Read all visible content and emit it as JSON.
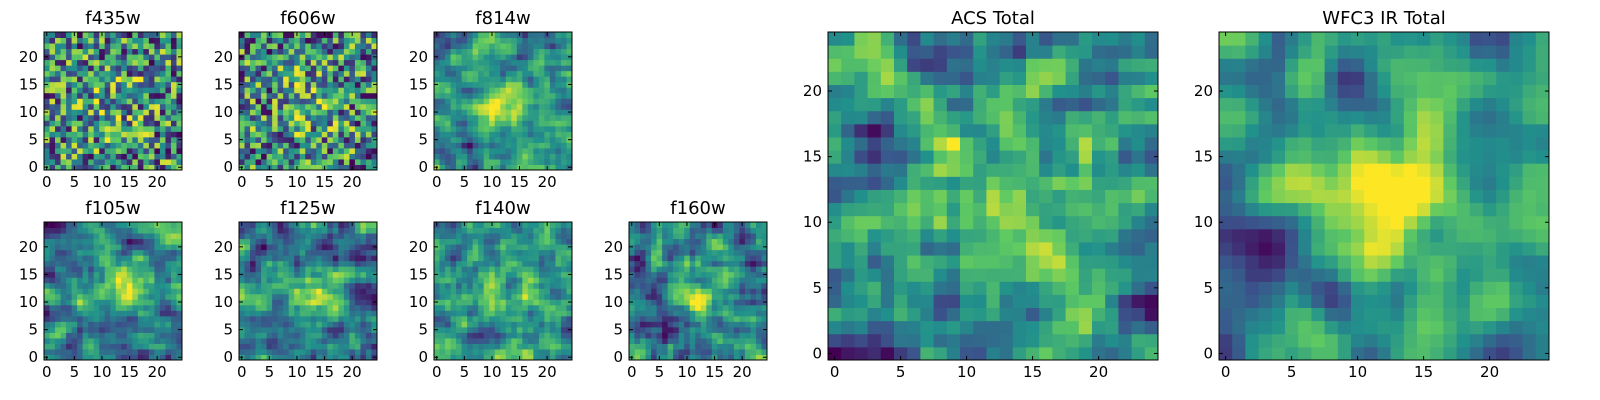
{
  "colormap": [
    "#440154",
    "#3b528b",
    "#21918c",
    "#5ec962",
    "#fde725"
  ],
  "chart_data": [
    {
      "type": "heatmap",
      "title": "f435w",
      "size": 25,
      "xticks": [
        0,
        5,
        10,
        15,
        20
      ],
      "yticks": [
        0,
        5,
        10,
        15,
        20
      ],
      "xlim": [
        0,
        24
      ],
      "ylim": [
        0,
        24
      ],
      "style": "noisy"
    },
    {
      "type": "heatmap",
      "title": "f606w",
      "size": 25,
      "xticks": [
        0,
        5,
        10,
        15,
        20
      ],
      "yticks": [
        0,
        5,
        10,
        15,
        20
      ],
      "xlim": [
        0,
        24
      ],
      "ylim": [
        0,
        24
      ],
      "style": "noisy"
    },
    {
      "type": "heatmap",
      "title": "f814w",
      "size": 25,
      "xticks": [
        0,
        5,
        10,
        15,
        20
      ],
      "yticks": [
        0,
        5,
        10,
        15,
        20
      ],
      "xlim": [
        0,
        24
      ],
      "ylim": [
        0,
        24
      ],
      "style": "blob"
    },
    {
      "type": "heatmap",
      "title": "f105w",
      "size": 25,
      "xticks": [
        0,
        5,
        10,
        15,
        20
      ],
      "yticks": [
        0,
        5,
        10,
        15,
        20
      ],
      "xlim": [
        0,
        24
      ],
      "ylim": [
        0,
        24
      ],
      "style": "smooth"
    },
    {
      "type": "heatmap",
      "title": "f125w",
      "size": 25,
      "xticks": [
        0,
        5,
        10,
        15,
        20
      ],
      "yticks": [
        0,
        5,
        10,
        15,
        20
      ],
      "xlim": [
        0,
        24
      ],
      "ylim": [
        0,
        24
      ],
      "style": "smooth"
    },
    {
      "type": "heatmap",
      "title": "f140w",
      "size": 25,
      "xticks": [
        0,
        5,
        10,
        15,
        20
      ],
      "yticks": [
        0,
        5,
        10,
        15,
        20
      ],
      "xlim": [
        0,
        24
      ],
      "ylim": [
        0,
        24
      ],
      "style": "smooth"
    },
    {
      "type": "heatmap",
      "title": "f160w",
      "size": 25,
      "xticks": [
        0,
        5,
        10,
        15,
        20
      ],
      "yticks": [
        0,
        5,
        10,
        15,
        20
      ],
      "xlim": [
        0,
        24
      ],
      "ylim": [
        0,
        24
      ],
      "style": "smooth"
    },
    {
      "type": "heatmap",
      "title": "ACS Total",
      "size": 25,
      "xticks": [
        0,
        5,
        10,
        15,
        20
      ],
      "yticks": [
        0,
        5,
        10,
        15,
        20
      ],
      "xlim": [
        0,
        24
      ],
      "ylim": [
        0,
        24
      ],
      "style": "blob"
    },
    {
      "type": "heatmap",
      "title": "WFC3 IR Total",
      "size": 25,
      "xticks": [
        0,
        5,
        10,
        15,
        20
      ],
      "yticks": [
        0,
        5,
        10,
        15,
        20
      ],
      "xlim": [
        0,
        24
      ],
      "ylim": [
        0,
        24
      ],
      "style": "wfc3"
    }
  ]
}
